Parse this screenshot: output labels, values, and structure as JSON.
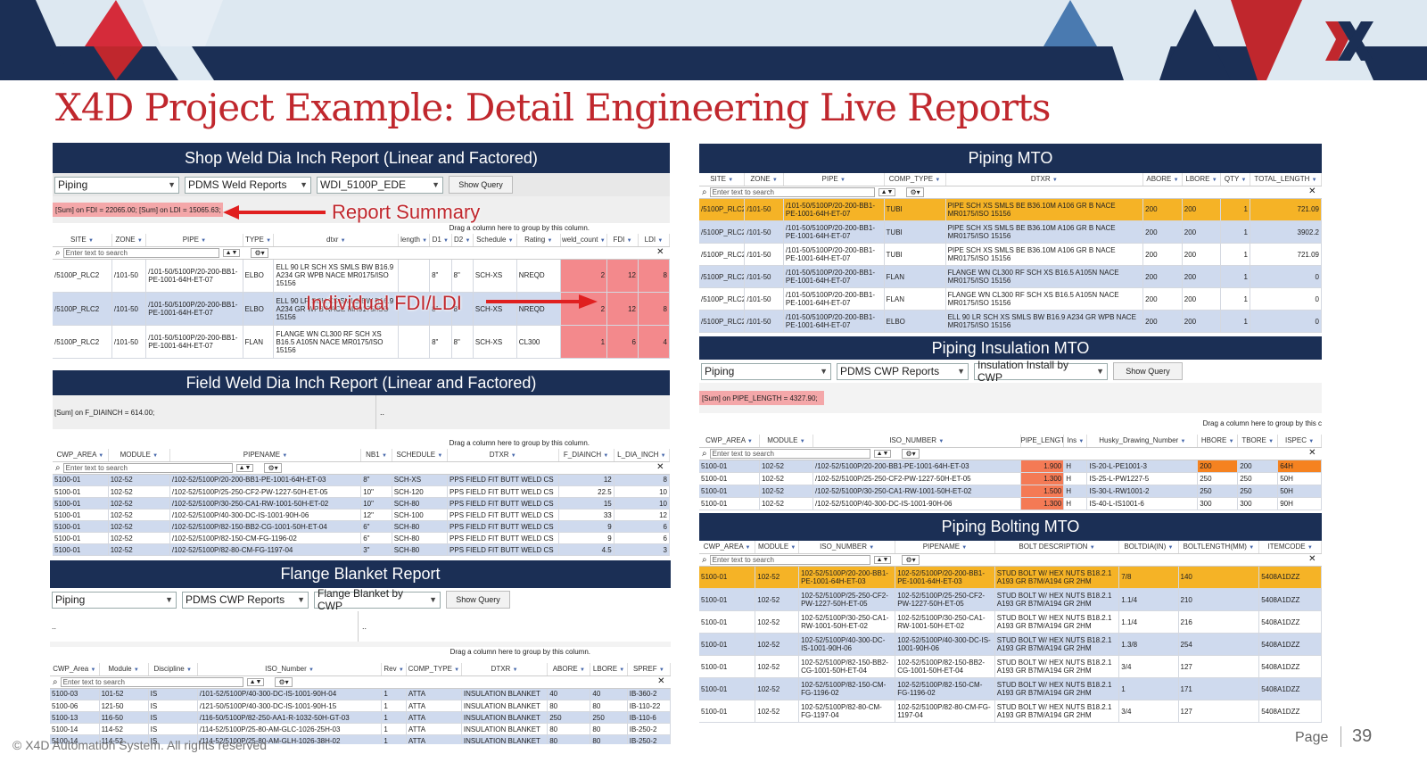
{
  "slide": {
    "title": "X4D Project Example: Detail Engineering Live Reports",
    "footer": "© X4D Automation System. All rights reserved",
    "page_label": "Page",
    "page_num": "39"
  },
  "annotations": {
    "summary": "Report Summary",
    "fdi": "Individual FDI/LDI"
  },
  "common": {
    "search_placeholder": "Enter text to search",
    "drag_hint": "Drag a column here to group by this column.",
    "show_query": "Show Query",
    "drag_hint_cut": "Drag a column here to group by this c"
  },
  "shopweld": {
    "title": "Shop Weld Dia Inch Report (Linear and Factored)",
    "discipline": "Piping",
    "report_type": "PDMS Weld Reports",
    "report": "WDI_5100P_EDE",
    "summary": "[Sum] on FDI = 22065.00;   [Sum] on LDI = 15065.63;",
    "columns": [
      "SITE",
      "ZONE",
      "PIPE",
      "TYPE",
      "dtxr",
      "length",
      "D1",
      "D2",
      "Schedule",
      "Rating",
      "weld_count",
      "FDI",
      "LDI"
    ],
    "rows": [
      [
        "/5100P_RLC2",
        "/101-50",
        "/101-50/5100P/20-200-BB1-PE-1001-64H-ET-07",
        "ELBO",
        "ELL 90 LR SCH XS SMLS BW B16.9 A234 GR WPB NACE MR0175/ISO 15156",
        "",
        "8\"",
        "8\"",
        "SCH-XS",
        "NREQD",
        "2",
        "12",
        "8"
      ],
      [
        "/5100P_RLC2",
        "/101-50",
        "/101-50/5100P/20-200-BB1-PE-1001-64H-ET-07",
        "ELBO",
        "ELL 90 LR SCH XS SMLS BW B16.9 A234 GR WPB NACE MR0175/ISO 15156",
        "",
        "8\"",
        "8\"",
        "SCH-XS",
        "NREQD",
        "2",
        "12",
        "8"
      ],
      [
        "/5100P_RLC2",
        "/101-50",
        "/101-50/5100P/20-200-BB1-PE-1001-64H-ET-07",
        "FLAN",
        "FLANGE WN CL300 RF SCH XS B16.5 A105N NACE MR0175/ISO 15156",
        "",
        "8\"",
        "8\"",
        "SCH-XS",
        "CL300",
        "1",
        "6",
        "4"
      ]
    ]
  },
  "fieldweld": {
    "title": "Field Weld Dia Inch Report (Linear and Factored)",
    "summary": "[Sum] on F_DIAINCH = 614.00;",
    "right_text": "..",
    "columns": [
      "CWP_AREA",
      "MODULE",
      "PIPENAME",
      "NB1",
      "SCHEDULE",
      "DTXR",
      "F_DIAINCH",
      "L_DIA_INCH"
    ],
    "rows": [
      [
        "5100-01",
        "102-52",
        "/102-52/5100P/20-200-BB1-PE-1001-64H-ET-03",
        "8\"",
        "SCH-XS",
        "PPS FIELD FIT BUTT WELD CS",
        "12",
        "8"
      ],
      [
        "5100-01",
        "102-52",
        "/102-52/5100P/25-250-CF2-PW-1227-50H-ET-05",
        "10\"",
        "SCH-120",
        "PPS FIELD FIT BUTT WELD CS",
        "22.5",
        "10"
      ],
      [
        "5100-01",
        "102-52",
        "/102-52/5100P/30-250-CA1-RW-1001-50H-ET-02",
        "10\"",
        "SCH-80",
        "PPS FIELD FIT BUTT WELD CS",
        "15",
        "10"
      ],
      [
        "5100-01",
        "102-52",
        "/102-52/5100P/40-300-DC-IS-1001-90H-06",
        "12\"",
        "SCH-100",
        "PPS FIELD FIT BUTT WELD CS",
        "33",
        "12"
      ],
      [
        "5100-01",
        "102-52",
        "/102-52/5100P/82-150-BB2-CG-1001-50H-ET-04",
        "6\"",
        "SCH-80",
        "PPS FIELD FIT BUTT WELD CS",
        "9",
        "6"
      ],
      [
        "5100-01",
        "102-52",
        "/102-52/5100P/82-150-CM-FG-1196-02",
        "6\"",
        "SCH-80",
        "PPS FIELD FIT BUTT WELD CS",
        "9",
        "6"
      ],
      [
        "5100-01",
        "102-52",
        "/102-52/5100P/82-80-CM-FG-1197-04",
        "3\"",
        "SCH-80",
        "PPS FIELD FIT BUTT WELD CS",
        "4.5",
        "3"
      ]
    ]
  },
  "flange": {
    "title": "Flange Blanket Report",
    "discipline": "Piping",
    "report_type": "PDMS CWP Reports",
    "report": "Flange Blanket by CWP",
    "left_text": "..",
    "right_text": "..",
    "columns": [
      "CWP_Area",
      "Module",
      "Discipline",
      "ISO_Number",
      "Rev",
      "COMP_TYPE",
      "DTXR",
      "ABORE",
      "LBORE",
      "SPREF"
    ],
    "rows": [
      [
        "5100-03",
        "101-52",
        "IS",
        "/101-52/5100P/40-300-DC-IS-1001-90H-04",
        "1",
        "ATTA",
        "INSULATION BLANKET",
        "40",
        "40",
        "IB-360-2"
      ],
      [
        "5100-06",
        "121-50",
        "IS",
        "/121-50/5100P/40-300-DC-IS-1001-90H-15",
        "1",
        "ATTA",
        "INSULATION BLANKET",
        "80",
        "80",
        "IB-110-22"
      ],
      [
        "5100-13",
        "116-50",
        "IS",
        "/116-50/5100P/82-250-AA1-R-1032-50H-GT-03",
        "1",
        "ATTA",
        "INSULATION BLANKET",
        "250",
        "250",
        "IB-110-6"
      ],
      [
        "5100-14",
        "114-52",
        "IS",
        "/114-52/5100P/25-80-AM-GLC-1026-25H-03",
        "1",
        "ATTA",
        "INSULATION BLANKET",
        "80",
        "80",
        "IB-250-2"
      ],
      [
        "5100-14",
        "114-52",
        "IS",
        "/114-52/5100P/25-80-AM-GLH-1026-38H-02",
        "1",
        "ATTA",
        "INSULATION BLANKET",
        "80",
        "80",
        "IB-250-2"
      ]
    ]
  },
  "pipingmto": {
    "title": "Piping MTO",
    "columns": [
      "SITE",
      "ZONE",
      "PIPE",
      "COMP_TYPE",
      "DTXR",
      "ABORE",
      "LBORE",
      "QTY",
      "TOTAL_LENGTH"
    ],
    "rows": [
      [
        "/5100P_RLC2",
        "/101-50",
        "/101-50/5100P/20-200-BB1-PE-1001-64H-ET-07",
        "TUBI",
        "PIPE SCH XS SMLS BE B36.10M A106 GR B NACE MR0175/ISO 15156",
        "200",
        "200",
        "1",
        "721.09"
      ],
      [
        "/5100P_RLC2",
        "/101-50",
        "/101-50/5100P/20-200-BB1-PE-1001-64H-ET-07",
        "TUBI",
        "PIPE SCH XS SMLS BE B36.10M A106 GR B NACE MR0175/ISO 15156",
        "200",
        "200",
        "1",
        "3902.2"
      ],
      [
        "/5100P_RLC2",
        "/101-50",
        "/101-50/5100P/20-200-BB1-PE-1001-64H-ET-07",
        "TUBI",
        "PIPE SCH XS SMLS BE B36.10M A106 GR B NACE MR0175/ISO 15156",
        "200",
        "200",
        "1",
        "721.09"
      ],
      [
        "/5100P_RLC2",
        "/101-50",
        "/101-50/5100P/20-200-BB1-PE-1001-64H-ET-07",
        "FLAN",
        "FLANGE WN CL300 RF SCH XS B16.5 A105N NACE MR0175/ISO 15156",
        "200",
        "200",
        "1",
        "0"
      ],
      [
        "/5100P_RLC2",
        "/101-50",
        "/101-50/5100P/20-200-BB1-PE-1001-64H-ET-07",
        "FLAN",
        "FLANGE WN CL300 RF SCH XS B16.5 A105N NACE MR0175/ISO 15156",
        "200",
        "200",
        "1",
        "0"
      ],
      [
        "/5100P_RLC2",
        "/101-50",
        "/101-50/5100P/20-200-BB1-PE-1001-64H-ET-07",
        "ELBO",
        "ELL 90 LR SCH XS SMLS BW B16.9 A234 GR WPB NACE MR0175/ISO 15156",
        "200",
        "200",
        "1",
        "0"
      ]
    ]
  },
  "insulation": {
    "title": "Piping Insulation MTO",
    "discipline": "Piping",
    "report_type": "PDMS CWP Reports",
    "report": "Insulation Install by CWP",
    "summary": "[Sum] on PIPE_LENGTH = 4327.90;",
    "columns": [
      "CWP_AREA",
      "MODULE",
      "ISO_NUMBER",
      "PIPE_LENGTH",
      "Ins",
      "Husky_Drawing_Number",
      "HBORE",
      "TBORE",
      "ISPEC"
    ],
    "rows": [
      [
        "5100-01",
        "102-52",
        "/102-52/5100P/20-200-BB1-PE-1001-64H-ET-03",
        "1.900",
        "H",
        "IS-20-L-PE1001-3",
        "200",
        "200",
        "64H"
      ],
      [
        "5100-01",
        "102-52",
        "/102-52/5100P/25-250-CF2-PW-1227-50H-ET-05",
        "1.300",
        "H",
        "IS-25-L-PW1227-5",
        "250",
        "250",
        "50H"
      ],
      [
        "5100-01",
        "102-52",
        "/102-52/5100P/30-250-CA1-RW-1001-50H-ET-02",
        "1.500",
        "H",
        "IS-30-L-RW1001-2",
        "250",
        "250",
        "50H"
      ],
      [
        "5100-01",
        "102-52",
        "/102-52/5100P/40-300-DC-IS-1001-90H-06",
        "1.300",
        "H",
        "IS-40-L-IS1001-6",
        "300",
        "300",
        "90H"
      ]
    ]
  },
  "bolting": {
    "title": "Piping Bolting MTO",
    "columns": [
      "CWP_AREA",
      "MODULE",
      "ISO_NUMBER",
      "PIPENAME",
      "BOLT DESCRIPTION",
      "BOLTDIA(IN)",
      "BOLTLENGTH(MM)",
      "ITEMCODE"
    ],
    "rows": [
      [
        "5100-01",
        "102-52",
        "102-52/5100P/20-200-BB1-PE-1001-64H-ET-03",
        "102-52/5100P/20-200-BB1-PE-1001-64H-ET-03",
        "STUD BOLT W/ HEX NUTS B18.2.1 A193 GR B7M/A194 GR 2HM",
        "7/8",
        "140",
        "5408A1DZZ"
      ],
      [
        "5100-01",
        "102-52",
        "102-52/5100P/25-250-CF2-PW-1227-50H-ET-05",
        "102-52/5100P/25-250-CF2-PW-1227-50H-ET-05",
        "STUD BOLT W/ HEX NUTS B18.2.1 A193 GR B7M/A194 GR 2HM",
        "1.1/4",
        "210",
        "5408A1DZZ"
      ],
      [
        "5100-01",
        "102-52",
        "102-52/5100P/30-250-CA1-RW-1001-50H-ET-02",
        "102-52/5100P/30-250-CA1-RW-1001-50H-ET-02",
        "STUD BOLT W/ HEX NUTS B18.2.1 A193 GR B7M/A194 GR 2HM",
        "1.1/4",
        "216",
        "5408A1DZZ"
      ],
      [
        "5100-01",
        "102-52",
        "102-52/5100P/40-300-DC-IS-1001-90H-06",
        "102-52/5100P/40-300-DC-IS-1001-90H-06",
        "STUD BOLT W/ HEX NUTS B18.2.1 A193 GR B7M/A194 GR 2HM",
        "1.3/8",
        "254",
        "5408A1DZZ"
      ],
      [
        "5100-01",
        "102-52",
        "102-52/5100P/82-150-BB2-CG-1001-50H-ET-04",
        "102-52/5100P/82-150-BB2-CG-1001-50H-ET-04",
        "STUD BOLT W/ HEX NUTS B18.2.1 A193 GR B7M/A194 GR 2HM",
        "3/4",
        "127",
        "5408A1DZZ"
      ],
      [
        "5100-01",
        "102-52",
        "102-52/5100P/82-150-CM-FG-1196-02",
        "102-52/5100P/82-150-CM-FG-1196-02",
        "STUD BOLT W/ HEX NUTS B18.2.1 A193 GR B7M/A194 GR 2HM",
        "1",
        "171",
        "5408A1DZZ"
      ],
      [
        "5100-01",
        "102-52",
        "102-52/5100P/82-80-CM-FG-1197-04",
        "102-52/5100P/82-80-CM-FG-1197-04",
        "STUD BOLT W/ HEX NUTS B18.2.1 A193 GR B7M/A194 GR 2HM",
        "3/4",
        "127",
        "5408A1DZZ"
      ]
    ]
  }
}
